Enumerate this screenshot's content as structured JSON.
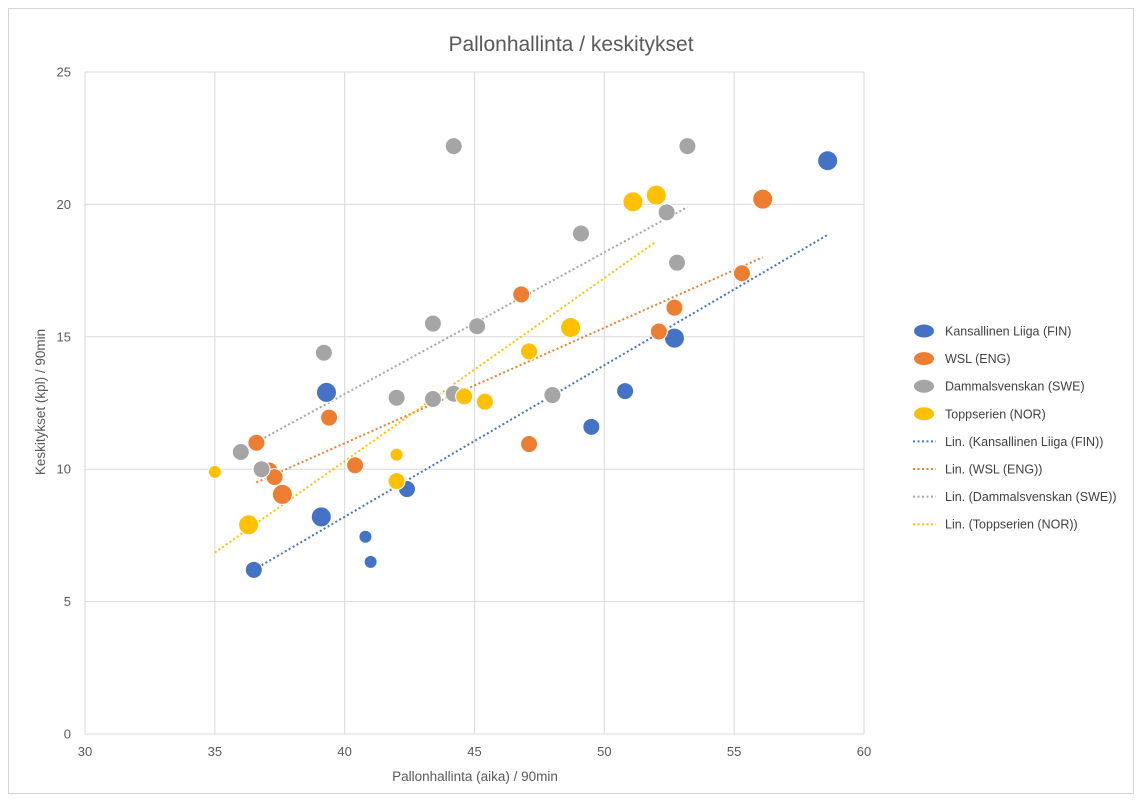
{
  "chart_data": {
    "type": "scatter",
    "title": "Pallonhallinta / keskitykset",
    "xlabel": "Pallonhallinta (aika) / 90min",
    "ylabel": "Keskitykset (kpl) / 90min",
    "xlim": [
      30,
      60
    ],
    "ylim": [
      0,
      25
    ],
    "x_ticks": [
      "30",
      "35",
      "40",
      "45",
      "50",
      "55",
      "60"
    ],
    "y_ticks": [
      "0",
      "5",
      "10",
      "15",
      "20",
      "25"
    ],
    "grid": true,
    "legend_position": "right",
    "series": [
      {
        "name": "Kansallinen Liiga (FIN)",
        "color": "#4472C4",
        "points": [
          {
            "x": 36.5,
            "y": 6.2,
            "size": 1
          },
          {
            "x": 39.1,
            "y": 8.2,
            "size": 2
          },
          {
            "x": 39.3,
            "y": 12.9,
            "size": 2
          },
          {
            "x": 40.8,
            "y": 7.45,
            "size": 0
          },
          {
            "x": 41.0,
            "y": 6.5,
            "size": 0
          },
          {
            "x": 42.4,
            "y": 9.25,
            "size": 1
          },
          {
            "x": 49.5,
            "y": 11.6,
            "size": 1
          },
          {
            "x": 50.8,
            "y": 12.95,
            "size": 1
          },
          {
            "x": 52.7,
            "y": 14.95,
            "size": 2
          },
          {
            "x": 58.6,
            "y": 21.65,
            "size": 2
          }
        ],
        "trend": {
          "label": "Lin. (Kansallinen Liiga (FIN))",
          "x1": 36.5,
          "y1": 6.2,
          "x2": 58.6,
          "y2": 18.85
        }
      },
      {
        "name": "WSL (ENG)",
        "color": "#ED7D31",
        "points": [
          {
            "x": 36.6,
            "y": 11.0,
            "size": 1
          },
          {
            "x": 37.1,
            "y": 9.95,
            "size": 1
          },
          {
            "x": 37.3,
            "y": 9.7,
            "size": 1
          },
          {
            "x": 37.6,
            "y": 9.05,
            "size": 2
          },
          {
            "x": 39.4,
            "y": 11.95,
            "size": 1
          },
          {
            "x": 40.4,
            "y": 10.15,
            "size": 1
          },
          {
            "x": 46.8,
            "y": 16.6,
            "size": 1
          },
          {
            "x": 47.1,
            "y": 10.95,
            "size": 1
          },
          {
            "x": 52.1,
            "y": 15.2,
            "size": 1
          },
          {
            "x": 52.7,
            "y": 16.1,
            "size": 1
          },
          {
            "x": 55.3,
            "y": 17.4,
            "size": 1
          },
          {
            "x": 56.1,
            "y": 20.2,
            "size": 2
          }
        ],
        "trend": {
          "label": "Lin. (WSL (ENG))",
          "x1": 36.6,
          "y1": 9.5,
          "x2": 56.1,
          "y2": 18.0
        }
      },
      {
        "name": "Dammalsvenskan (SWE)",
        "color": "#A5A5A5",
        "points": [
          {
            "x": 36.0,
            "y": 10.65,
            "size": 1
          },
          {
            "x": 36.8,
            "y": 10.0,
            "size": 1
          },
          {
            "x": 39.2,
            "y": 14.4,
            "size": 1
          },
          {
            "x": 42.0,
            "y": 12.7,
            "size": 1
          },
          {
            "x": 43.4,
            "y": 15.5,
            "size": 1
          },
          {
            "x": 43.4,
            "y": 12.65,
            "size": 1
          },
          {
            "x": 44.2,
            "y": 22.2,
            "size": 1
          },
          {
            "x": 44.2,
            "y": 12.85,
            "size": 1
          },
          {
            "x": 45.1,
            "y": 15.4,
            "size": 1
          },
          {
            "x": 48.0,
            "y": 12.8,
            "size": 1
          },
          {
            "x": 49.1,
            "y": 18.9,
            "size": 1
          },
          {
            "x": 52.4,
            "y": 19.7,
            "size": 1
          },
          {
            "x": 52.8,
            "y": 17.8,
            "size": 1
          },
          {
            "x": 53.2,
            "y": 22.2,
            "size": 1
          }
        ],
        "trend": {
          "label": "Lin. (Dammalsvenskan (SWE))",
          "x1": 36.0,
          "y1": 10.7,
          "x2": 53.2,
          "y2": 19.9
        }
      },
      {
        "name": "Toppserien (NOR)",
        "color": "#FFC000",
        "points": [
          {
            "x": 35.0,
            "y": 9.9,
            "size": 0
          },
          {
            "x": 36.3,
            "y": 7.9,
            "size": 2
          },
          {
            "x": 42.0,
            "y": 10.55,
            "size": 0
          },
          {
            "x": 42.0,
            "y": 9.55,
            "size": 1
          },
          {
            "x": 44.6,
            "y": 12.75,
            "size": 1
          },
          {
            "x": 45.4,
            "y": 12.55,
            "size": 1
          },
          {
            "x": 47.1,
            "y": 14.45,
            "size": 1
          },
          {
            "x": 48.7,
            "y": 15.35,
            "size": 2
          },
          {
            "x": 51.1,
            "y": 20.1,
            "size": 2
          },
          {
            "x": 52.0,
            "y": 20.35,
            "size": 2
          }
        ],
        "trend": {
          "label": "Lin. (Toppserien (NOR))",
          "x1": 35.0,
          "y1": 6.85,
          "x2": 52.0,
          "y2": 18.6
        }
      }
    ]
  }
}
